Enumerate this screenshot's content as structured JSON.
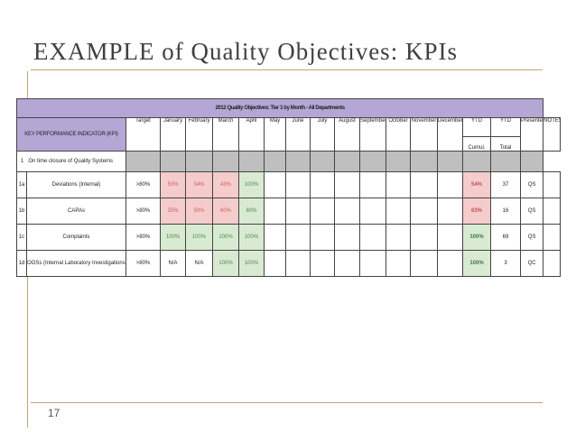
{
  "slide": {
    "title": "EXAMPLE of Quality Objectives: KPIs",
    "page_number": "17"
  },
  "table": {
    "title": "2012 Quality Objectives: Tier 1 by Month - All Departments",
    "kpi_header": "KEY PERFORMANCE INDICATOR (KPI)",
    "columns": [
      "Target",
      "January",
      "February",
      "March",
      "April",
      "May",
      "June",
      "July",
      "August",
      "September",
      "October",
      "November",
      "December",
      "YTD",
      "YTD",
      "Presenter",
      "NOTES"
    ],
    "ytd_sub": [
      "Cumul.",
      "Total"
    ],
    "section": {
      "num": "1",
      "label": "On time closure of Quality Systems"
    },
    "rows": [
      {
        "num": "1a",
        "label": "Deviations (Internal)",
        "target": ">80%",
        "jan": "50%",
        "feb": "34%",
        "mar": "43%",
        "apr": "100%",
        "ytd": "54%",
        "total": "37",
        "presenter": "QS"
      },
      {
        "num": "1b",
        "label": "CAPAs",
        "target": ">80%",
        "jan": "25%",
        "feb": "50%",
        "mar": "60%",
        "apr": "80%",
        "ytd": "63%",
        "total": "16",
        "presenter": "QS"
      },
      {
        "num": "1c",
        "label": "Complaints",
        "target": ">80%",
        "jan": "100%",
        "feb": "100%",
        "mar": "100%",
        "apr": "100%",
        "ytd": "100%",
        "total": "69",
        "presenter": "QS"
      },
      {
        "num": "1d",
        "label": "OOSs (Internal Laboratory Investigations)",
        "target": ">80%",
        "jan": "N/A",
        "feb": "N/A",
        "mar": "100%",
        "apr": "100%",
        "ytd": "100%",
        "total": "3",
        "presenter": "QC"
      }
    ]
  }
}
